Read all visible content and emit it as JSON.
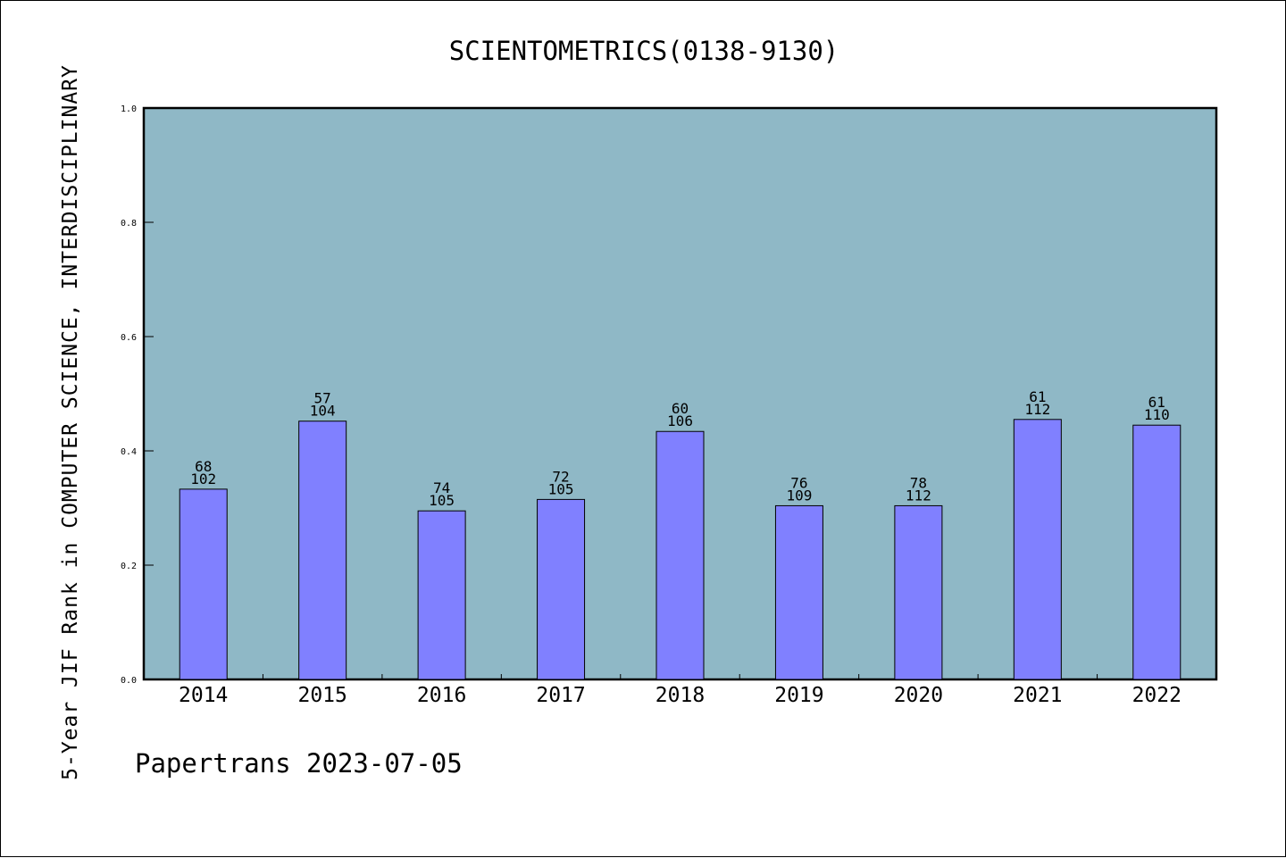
{
  "chart_data": {
    "type": "bar",
    "title": "SCIENTOMETRICS(0138-9130)",
    "xlabel": "",
    "ylabel": "5-Year JIF Rank in COMPUTER SCIENCE, INTERDISCIPLINARY",
    "ylim": [
      0,
      1.0
    ],
    "yticks": [
      "0.0",
      "0.2",
      "0.4",
      "0.6",
      "0.8",
      "1.0"
    ],
    "categories": [
      "2014",
      "2015",
      "2016",
      "2017",
      "2018",
      "2019",
      "2020",
      "2021",
      "2022"
    ],
    "values": [
      0.333,
      0.452,
      0.295,
      0.315,
      0.434,
      0.304,
      0.304,
      0.455,
      0.445
    ],
    "bar_labels": [
      [
        "68",
        "102"
      ],
      [
        "57",
        "104"
      ],
      [
        "74",
        "105"
      ],
      [
        "72",
        "105"
      ],
      [
        "60",
        "106"
      ],
      [
        "76",
        "109"
      ],
      [
        "78",
        "112"
      ],
      [
        "61",
        "112"
      ],
      [
        "61",
        "110"
      ]
    ],
    "grid": false,
    "colors": {
      "plot_background": "#8fb8c6",
      "bar_fill": "#8080ff",
      "bar_edge": "#000000"
    }
  },
  "footer": {
    "text": "Papertrans 2023-07-05"
  }
}
